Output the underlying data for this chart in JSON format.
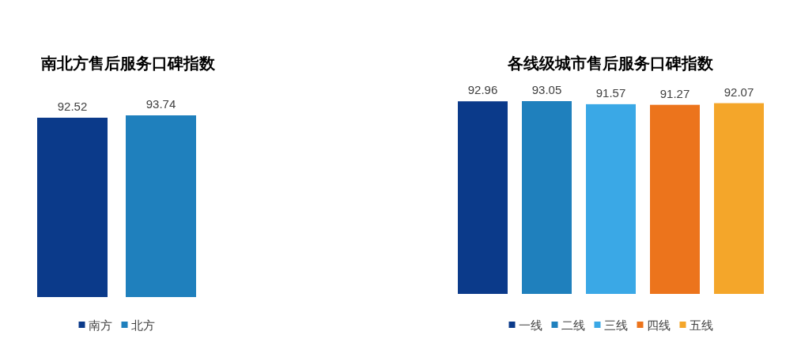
{
  "chart_data": [
    {
      "type": "bar",
      "title": "南北方售后服务口碑指数",
      "categories": [
        null
      ],
      "series": [
        {
          "name": "南方",
          "color": "#0b3a8a",
          "values": [
            92.52
          ]
        },
        {
          "name": "北方",
          "color": "#1f80bd",
          "values": [
            93.74
          ]
        }
      ],
      "data_labels": true,
      "legend": "bottom"
    },
    {
      "type": "bar",
      "title": "各线级城市售后服务口碑指数",
      "categories": [
        null
      ],
      "series": [
        {
          "name": "一线",
          "color": "#0b3a8a",
          "values": [
            92.96
          ]
        },
        {
          "name": "二线",
          "color": "#1f80bd",
          "values": [
            93.05
          ]
        },
        {
          "name": "三线",
          "color": "#3aa8e6",
          "values": [
            91.57
          ]
        },
        {
          "name": "四线",
          "color": "#ec741c",
          "values": [
            91.27
          ]
        },
        {
          "name": "五线",
          "color": "#f4a62a",
          "values": [
            92.07
          ]
        }
      ],
      "data_labels": true,
      "legend": "bottom"
    }
  ]
}
